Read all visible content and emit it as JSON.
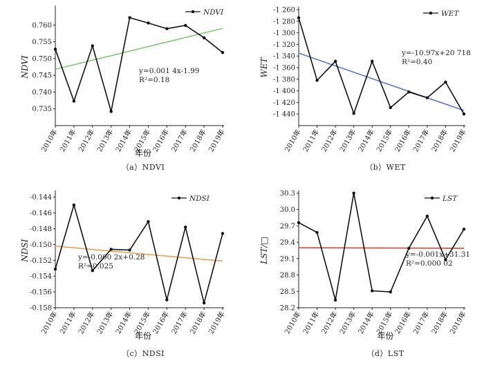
{
  "chart_data": [
    {
      "type": "line",
      "panel": "a",
      "caption": "（a）NDVI",
      "categories": [
        "2010年",
        "2011年",
        "2012年",
        "2013年",
        "2014年",
        "2015年",
        "2016年",
        "2017年",
        "2018年",
        "2019年"
      ],
      "series": [
        {
          "name": "NDVI",
          "values": [
            0.7528,
            0.7373,
            0.7538,
            0.7342,
            0.7622,
            0.7606,
            0.7589,
            0.7599,
            0.7562,
            0.7518
          ]
        }
      ],
      "trend": {
        "start": 0.7468,
        "end": 0.759,
        "color": "#7dc873"
      },
      "equation": "y=0.001 4x-1.99",
      "r2": "R²=0.18",
      "xlabel": "年份",
      "ylabel": "NDVI",
      "ylim": [
        0.73,
        0.765
      ],
      "yticks": [
        "0.760",
        "0.755",
        "0.750",
        "0.745",
        "0.740",
        "0.735"
      ],
      "ytick_values": [
        0.76,
        0.755,
        0.75,
        0.745,
        0.74,
        0.735
      ],
      "grid": false,
      "legend": "top-right",
      "reversed": false
    },
    {
      "type": "line",
      "panel": "b",
      "caption": "（b）WET",
      "categories": [
        "2010年",
        "2011年",
        "2012年",
        "2013年",
        "2014年",
        "2015年",
        "2016年",
        "2017年",
        "2018年",
        "2019年"
      ],
      "series": [
        {
          "name": "WET",
          "values": [
            -1274,
            -1382,
            -1349,
            -1439,
            -1349,
            -1429,
            -1402,
            -1412,
            -1385,
            -1440
          ]
        }
      ],
      "trend": {
        "start": -1335,
        "end": -1434,
        "color": "#5a74c8"
      },
      "equation": "y=-10.97x+20 718",
      "r2": "R²=0.40",
      "xlabel": "",
      "ylabel": "WET",
      "ylim": [
        -1460,
        -1260
      ],
      "yticks": [
        "-1 260",
        "-1 280",
        "-1 300",
        "-1 320",
        "-1 340",
        "-1 360",
        "-1 380",
        "-1 400",
        "-1 420",
        "-1 440"
      ],
      "ytick_values": [
        -1260,
        -1280,
        -1300,
        -1320,
        -1340,
        -1360,
        -1380,
        -1400,
        -1420,
        -1440
      ],
      "grid": false,
      "legend": "top-right",
      "reversed": true
    },
    {
      "type": "line",
      "panel": "c",
      "caption": "（c）NDSI",
      "categories": [
        "2010年",
        "2011年",
        "2012年",
        "2013年",
        "2014年",
        "2015年",
        "2016年",
        "2017年",
        "2018年",
        "2019年"
      ],
      "series": [
        {
          "name": "NDSI",
          "values": [
            -0.1531,
            -0.145,
            -0.1533,
            -0.1506,
            -0.1507,
            -0.1471,
            -0.157,
            -0.1478,
            -0.1574,
            -0.1486
          ]
        }
      ],
      "trend": {
        "start": -0.1502,
        "end": -0.1521,
        "color": "#e3a25a"
      },
      "equation": "y=-0.000 2x+0.28",
      "r2": "R²=0.025",
      "xlabel": "年份",
      "ylabel": "NDSI",
      "ylim": [
        -0.158,
        -0.1435
      ],
      "yticks": [
        "-0.144",
        "-0.146",
        "-0.148",
        "-0.150",
        "-0.152",
        "-0.154",
        "-0.156",
        "-0.158"
      ],
      "ytick_values": [
        -0.144,
        -0.146,
        -0.148,
        -0.15,
        -0.152,
        -0.154,
        -0.156,
        -0.158
      ],
      "grid": false,
      "legend": "top-right",
      "reversed": false
    },
    {
      "type": "line",
      "panel": "d",
      "caption": "（d）LST",
      "categories": [
        "2010年",
        "2011年",
        "2012年",
        "2013年",
        "2014年",
        "2015年",
        "2016年",
        "2017年",
        "2018年",
        "2019年"
      ],
      "series": [
        {
          "name": "LST",
          "values": [
            29.76,
            29.58,
            28.34,
            30.3,
            28.51,
            28.49,
            29.29,
            29.88,
            29.08,
            29.64
          ]
        }
      ],
      "trend": {
        "start": 29.3,
        "end": 29.29,
        "color": "#d04a3c"
      },
      "equation": "y=-0.001x+31.31",
      "r2": "R²=0.000 02",
      "xlabel": "年份",
      "ylabel": "LST/□",
      "ylim": [
        28.2,
        30.3
      ],
      "yticks": [
        "30.3",
        "30.0",
        "29.7",
        "29.4",
        "29.1",
        "28.8",
        "28.5",
        "28.2"
      ],
      "ytick_values": [
        30.3,
        30.0,
        29.7,
        29.4,
        29.1,
        28.8,
        28.5,
        28.2
      ],
      "grid": false,
      "legend": "top-right",
      "reversed": false
    }
  ]
}
